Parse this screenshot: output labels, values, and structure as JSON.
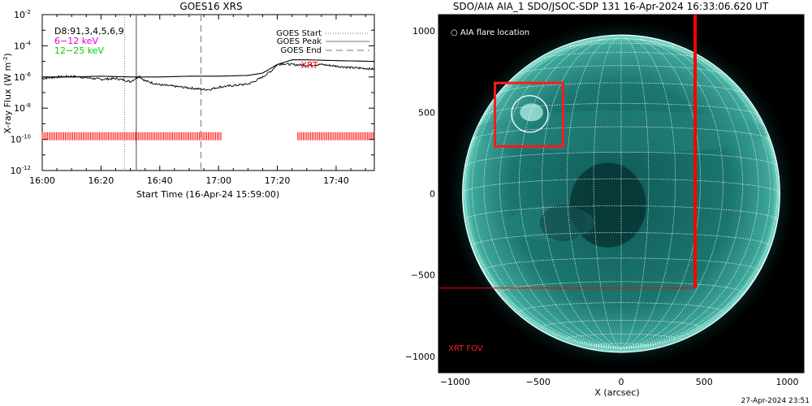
{
  "chart_data": [
    {
      "type": "line",
      "title": "GOES16 XRS",
      "xlabel": "Start Time (16-Apr-24 15:59:00)",
      "ylabel": "X-ray Flux (W m",
      "ylabel_sup": "-2",
      "ylabel_close": ")",
      "y_scale": "log",
      "xlim": [
        "16:00",
        "17:53"
      ],
      "ylim": [
        1e-12,
        0.01
      ],
      "x_tick_labels": [
        "16:00",
        "16:20",
        "16:40",
        "17:00",
        "17:20",
        "17:40"
      ],
      "x_tick_minutes": [
        0,
        20,
        40,
        60,
        80,
        100
      ],
      "y_tick_exponents": [
        -12,
        -10,
        -8,
        -6,
        -4,
        -2
      ],
      "y_tick_base": "10",
      "legend_left": {
        "placement": "top-left",
        "entries": [
          {
            "text": "D8:91,3,4,5,6,9",
            "color": "#000000"
          },
          {
            "text": "6−12 keV",
            "color": "#e000e0"
          },
          {
            "text": "12−25 keV",
            "color": "#00d000"
          }
        ]
      },
      "legend_right": {
        "placement": "top-right",
        "entries": [
          {
            "text": "GOES Start",
            "style": "dotted"
          },
          {
            "text": "GOES Peak",
            "style": "solid"
          },
          {
            "text": "GOES End",
            "style": "dashed"
          }
        ]
      },
      "series": [
        {
          "name": "6−12 keV",
          "color": "#000000",
          "x_min": [
            0,
            5,
            10,
            15,
            20,
            25,
            28,
            30,
            33,
            35,
            40,
            45,
            50,
            55,
            57,
            60,
            65,
            70,
            72,
            75,
            78,
            80,
            82,
            85,
            90,
            95,
            100,
            105,
            110,
            113
          ],
          "log_flux": [
            -6.1,
            -6.0,
            -5.95,
            -6.05,
            -6.15,
            -6.1,
            -6.2,
            -6.3,
            -5.95,
            -6.25,
            -6.5,
            -6.6,
            -6.7,
            -6.8,
            -6.8,
            -6.65,
            -6.55,
            -6.45,
            -6.3,
            -6.0,
            -5.6,
            -5.2,
            -5.15,
            -5.2,
            -5.25,
            -5.2,
            -5.3,
            -5.4,
            -5.45,
            -5.5
          ]
        },
        {
          "name": "12−25 keV",
          "color": "#000000",
          "x_min": [
            0,
            10,
            20,
            30,
            40,
            50,
            60,
            70,
            75,
            80,
            85,
            90,
            100,
            113
          ],
          "log_flux": [
            -6.0,
            -6.0,
            -5.95,
            -6.0,
            -6.0,
            -5.95,
            -5.95,
            -5.9,
            -5.75,
            -5.2,
            -4.9,
            -4.9,
            -4.95,
            -5.0
          ]
        }
      ],
      "annotations": [
        {
          "text": "XRT",
          "color": "#ff0000",
          "x_min": 88,
          "log_flux": -5.45
        }
      ],
      "event_lines_min": {
        "start": 28,
        "peak": 32,
        "end": 54
      },
      "coverage_bars": {
        "color": "#ff0000",
        "log_flux": -9.8,
        "intervals_min": [
          [
            0,
            61
          ],
          [
            87,
            113
          ]
        ]
      }
    },
    {
      "type": "image",
      "title": "SDO/AIA AIA_1 SDO/JSOC-SDP 131 16-Apr-2024 16:33:06.620 UT",
      "xlabel": "X (arcsec)",
      "xlim": [
        -1100,
        1100
      ],
      "ylim": [
        -1100,
        1100
      ],
      "x_tick_labels": [
        "−1000",
        "−500",
        "0",
        "500",
        "1000"
      ],
      "x_tick_values": [
        -1000,
        -500,
        0,
        500,
        1000
      ],
      "y_tick_labels": [
        "1000",
        "500",
        "0",
        "−500",
        "−1000"
      ],
      "y_tick_values": [
        1000,
        500,
        0,
        -500,
        -1000
      ],
      "solar_radius_arcsec": 955,
      "disk_color": "#1d6f6a",
      "legend_text": "○ AIA flare location",
      "flare_location": {
        "x": -550,
        "y": 490,
        "r": 110
      },
      "flare_box": {
        "x1": -760,
        "y1": 290,
        "x2": -350,
        "y2": 680,
        "color": "#ff1a1a"
      },
      "xrt_fov": {
        "label": "XRT FOV",
        "x1": -1100,
        "y1": -580,
        "x2": 445,
        "y2": 1100,
        "color": "#ff0000"
      },
      "grid": true
    }
  ],
  "footer": {
    "timestamp": "27-Apr-2024 23:51"
  }
}
